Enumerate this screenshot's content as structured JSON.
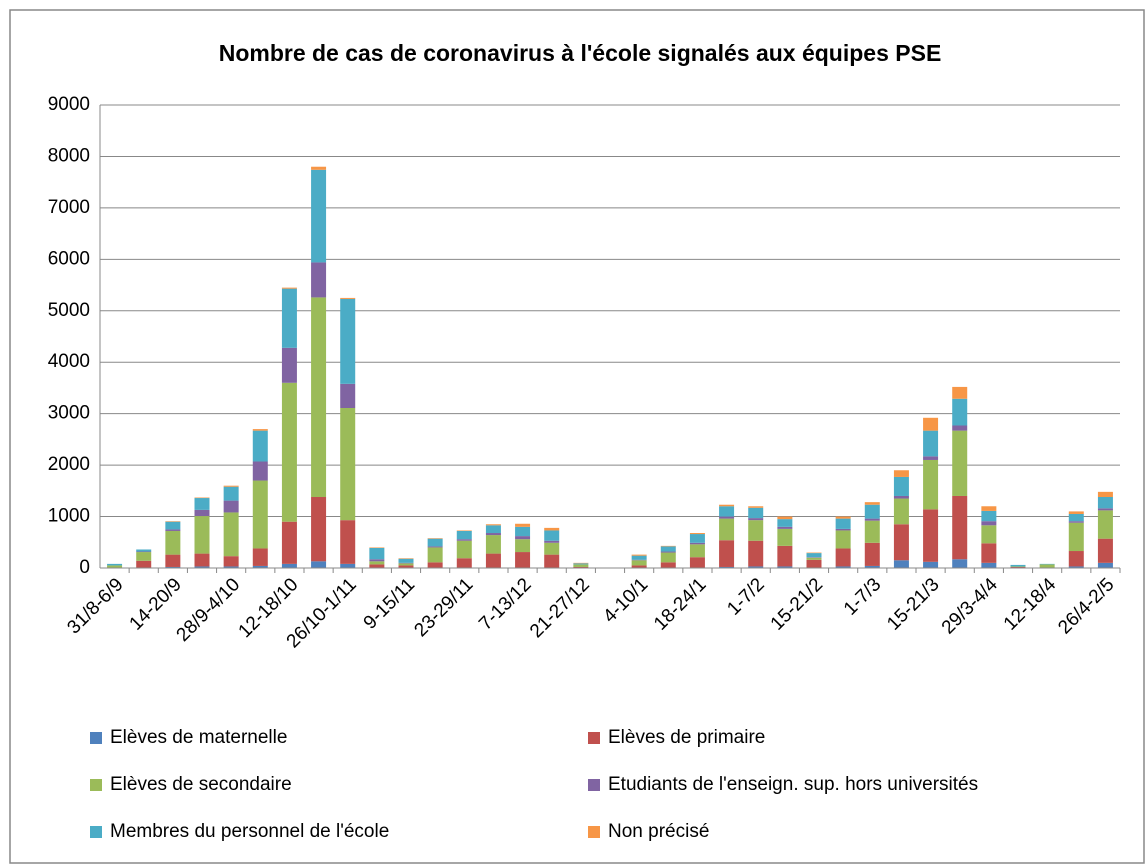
{
  "chart_data": {
    "type": "stacked_bar",
    "title": "Nombre de cas de coronavirus à l'école signalés aux équipes PSE",
    "categories": [
      "31/8-6/9",
      null,
      "14-20/9",
      null,
      "28/9-4/10",
      null,
      "12-18/10",
      null,
      "26/10-1/11",
      null,
      "9-15/11",
      null,
      "23-29/11",
      null,
      "7-13/12",
      null,
      "21-27/12",
      null,
      "4-10/1",
      null,
      "18-24/1",
      null,
      "1-7/2",
      null,
      "15-21/2",
      null,
      "1-7/3",
      null,
      "15-21/3",
      null,
      "29/3-4/4",
      null,
      "12-18/4",
      null,
      "26/4-2/5"
    ],
    "series": [
      {
        "name": "Elèves de maternelle",
        "color": "#4f81bd",
        "values": [
          0,
          10,
          20,
          30,
          30,
          40,
          80,
          130,
          80,
          10,
          10,
          10,
          10,
          10,
          10,
          10,
          0,
          0,
          10,
          10,
          10,
          20,
          30,
          30,
          10,
          30,
          40,
          150,
          120,
          170,
          100,
          10,
          0,
          30,
          100
        ]
      },
      {
        "name": "Elèves de primaire",
        "color": "#c0504d",
        "values": [
          10,
          130,
          240,
          250,
          200,
          340,
          820,
          1250,
          850,
          60,
          40,
          100,
          180,
          270,
          300,
          250,
          20,
          0,
          40,
          100,
          200,
          520,
          500,
          400,
          150,
          350,
          450,
          700,
          1020,
          1230,
          380,
          10,
          10,
          300,
          470
        ]
      },
      {
        "name": "Elèves de secondaire",
        "color": "#9bbb59",
        "values": [
          40,
          170,
          460,
          730,
          850,
          1320,
          2700,
          3880,
          2180,
          60,
          40,
          290,
          340,
          360,
          250,
          230,
          50,
          0,
          100,
          190,
          250,
          420,
          400,
          330,
          40,
          350,
          430,
          500,
          960,
          1270,
          350,
          10,
          60,
          550,
          550
        ]
      },
      {
        "name": "Etudiants de l'enseign. sup. hors universités",
        "color": "#8064a2",
        "values": [
          0,
          10,
          30,
          120,
          230,
          370,
          680,
          680,
          470,
          40,
          10,
          20,
          30,
          40,
          60,
          40,
          0,
          0,
          10,
          20,
          30,
          40,
          40,
          40,
          10,
          30,
          40,
          50,
          70,
          100,
          80,
          0,
          0,
          30,
          40
        ]
      },
      {
        "name": "Membres du personnel de l'école",
        "color": "#4bacc6",
        "values": [
          30,
          40,
          150,
          230,
          270,
          600,
          1150,
          1800,
          1650,
          220,
          80,
          150,
          160,
          150,
          180,
          200,
          20,
          0,
          80,
          100,
          170,
          200,
          200,
          150,
          80,
          200,
          270,
          370,
          500,
          520,
          200,
          30,
          10,
          140,
          220
        ]
      },
      {
        "name": "Non précisé",
        "color": "#f79646",
        "values": [
          0,
          0,
          10,
          10,
          20,
          30,
          20,
          60,
          20,
          10,
          10,
          10,
          10,
          20,
          60,
          50,
          10,
          0,
          20,
          10,
          20,
          30,
          30,
          50,
          10,
          40,
          50,
          130,
          250,
          230,
          90,
          0,
          0,
          50,
          100
        ]
      }
    ],
    "ylim": [
      0,
      9000
    ],
    "yticks": [
      0,
      1000,
      2000,
      3000,
      4000,
      5000,
      6000,
      7000,
      8000,
      9000
    ],
    "grid": true
  }
}
